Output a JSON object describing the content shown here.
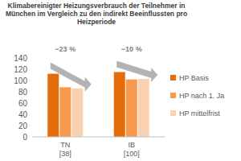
{
  "chart_data": {
    "type": "bar",
    "title": "Klimabereinigter Heizungsverbrauch der Teilnehmer in\nMünchen im Vergleich zu den indirekt Beeinflussten pro\nHeizperiode",
    "categories": [
      "TN\n[38]",
      "IB\n[100]"
    ],
    "series": [
      {
        "name": "HP Basis",
        "color": "#e46c0a",
        "values": [
          112,
          115
        ]
      },
      {
        "name": "HP nach 1. Ja",
        "color": "#f79a4e",
        "values": [
          88,
          102
        ]
      },
      {
        "name": "HP mittelfrist",
        "color": "#fbd2b0",
        "values": [
          86,
          103
        ]
      }
    ],
    "annotations": [
      "−23 %",
      "−10 %"
    ],
    "ylim": [
      0,
      140
    ],
    "yticks": [
      0,
      20,
      40,
      60,
      80,
      100,
      120,
      140
    ],
    "grid": false,
    "legend": "right"
  }
}
